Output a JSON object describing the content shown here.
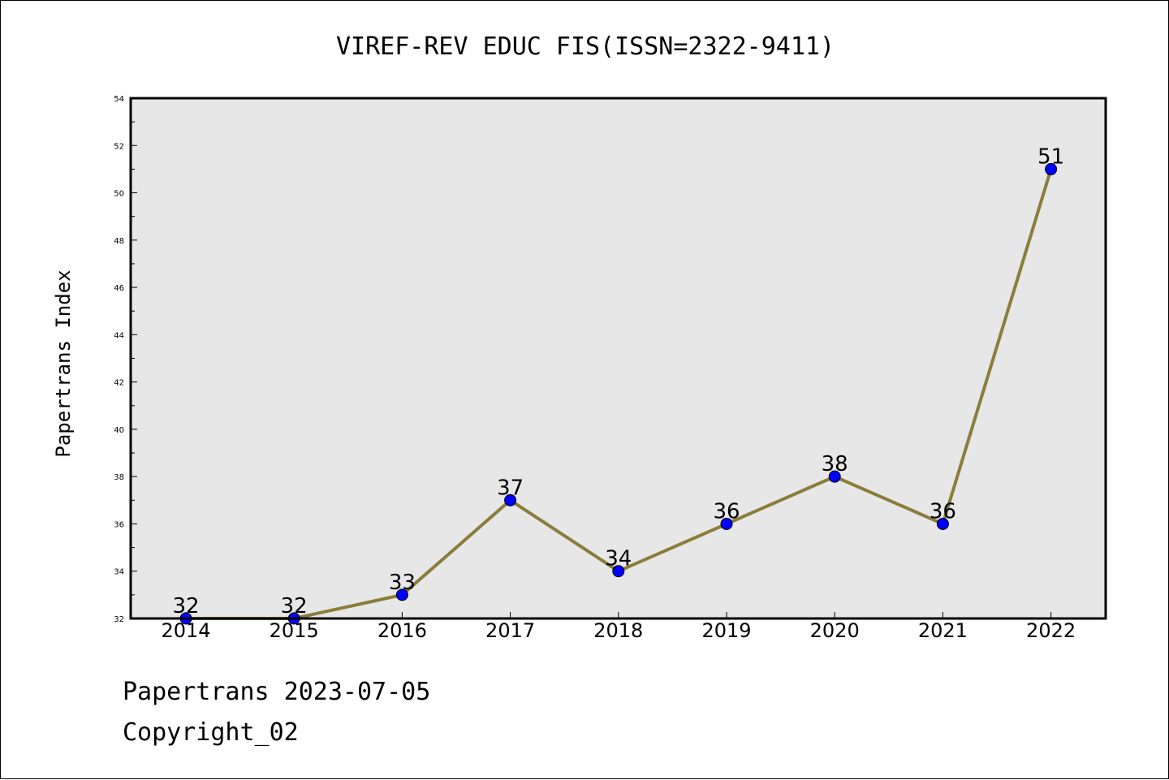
{
  "chart_data": {
    "type": "line",
    "title": "VIREF-REV EDUC FIS(ISSN=2322-9411)",
    "ylabel": "Papertrans Index",
    "xlabel": "",
    "categories": [
      "2014",
      "2015",
      "2016",
      "2017",
      "2018",
      "2019",
      "2020",
      "2021",
      "2022"
    ],
    "series": [
      {
        "values": [
          32,
          32,
          33,
          37,
          34,
          36,
          38,
          36,
          51
        ]
      }
    ],
    "ylim": [
      32,
      54
    ],
    "yticks": [
      "32",
      "34",
      "36",
      "38",
      "40",
      "42",
      "44",
      "46",
      "48",
      "50",
      "52",
      "54"
    ],
    "data_labels": [
      "32",
      "32",
      "33",
      "37",
      "34",
      "36",
      "38",
      "36",
      "51"
    ],
    "line_color": "#8b7d3a",
    "marker_color": "#0000ff",
    "plot_background": "#e7e7e7",
    "grid": false
  },
  "footer": {
    "line1": "Papertrans 2023-07-05",
    "line2": "Copyright_02"
  }
}
